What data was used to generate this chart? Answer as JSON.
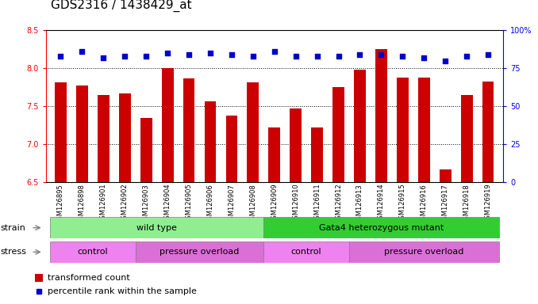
{
  "title": "GDS2316 / 1438429_at",
  "samples": [
    "GSM126895",
    "GSM126898",
    "GSM126901",
    "GSM126902",
    "GSM126903",
    "GSM126904",
    "GSM126905",
    "GSM126906",
    "GSM126907",
    "GSM126908",
    "GSM126909",
    "GSM126910",
    "GSM126911",
    "GSM126912",
    "GSM126913",
    "GSM126914",
    "GSM126915",
    "GSM126916",
    "GSM126917",
    "GSM126918",
    "GSM126919"
  ],
  "bar_values": [
    7.82,
    7.78,
    7.65,
    7.67,
    7.35,
    8.0,
    7.87,
    7.57,
    7.38,
    7.82,
    7.22,
    7.47,
    7.22,
    7.75,
    7.98,
    8.25,
    7.88,
    7.88,
    6.67,
    7.65,
    7.83
  ],
  "dot_values": [
    83,
    86,
    82,
    83,
    83,
    85,
    84,
    85,
    84,
    83,
    86,
    83,
    83,
    83,
    84,
    84,
    83,
    82,
    80,
    83,
    84
  ],
  "bar_color": "#cc0000",
  "dot_color": "#0000cc",
  "ylim_left": [
    6.5,
    8.5
  ],
  "ylim_right": [
    0,
    100
  ],
  "yticks_left": [
    6.5,
    7.0,
    7.5,
    8.0,
    8.5
  ],
  "yticks_right": [
    0,
    25,
    50,
    75,
    100
  ],
  "grid_values": [
    7.0,
    7.5,
    8.0
  ],
  "strain_color_wt": "#90ee90",
  "strain_color_mut": "#32cd32",
  "stress_color_ctrl": "#ee82ee",
  "stress_color_po": "#da70d6",
  "legend_bar_label": "transformed count",
  "legend_dot_label": "percentile rank within the sample",
  "tick_fontsize": 7,
  "label_fontsize": 8,
  "band_fontsize": 8,
  "title_fontsize": 11
}
